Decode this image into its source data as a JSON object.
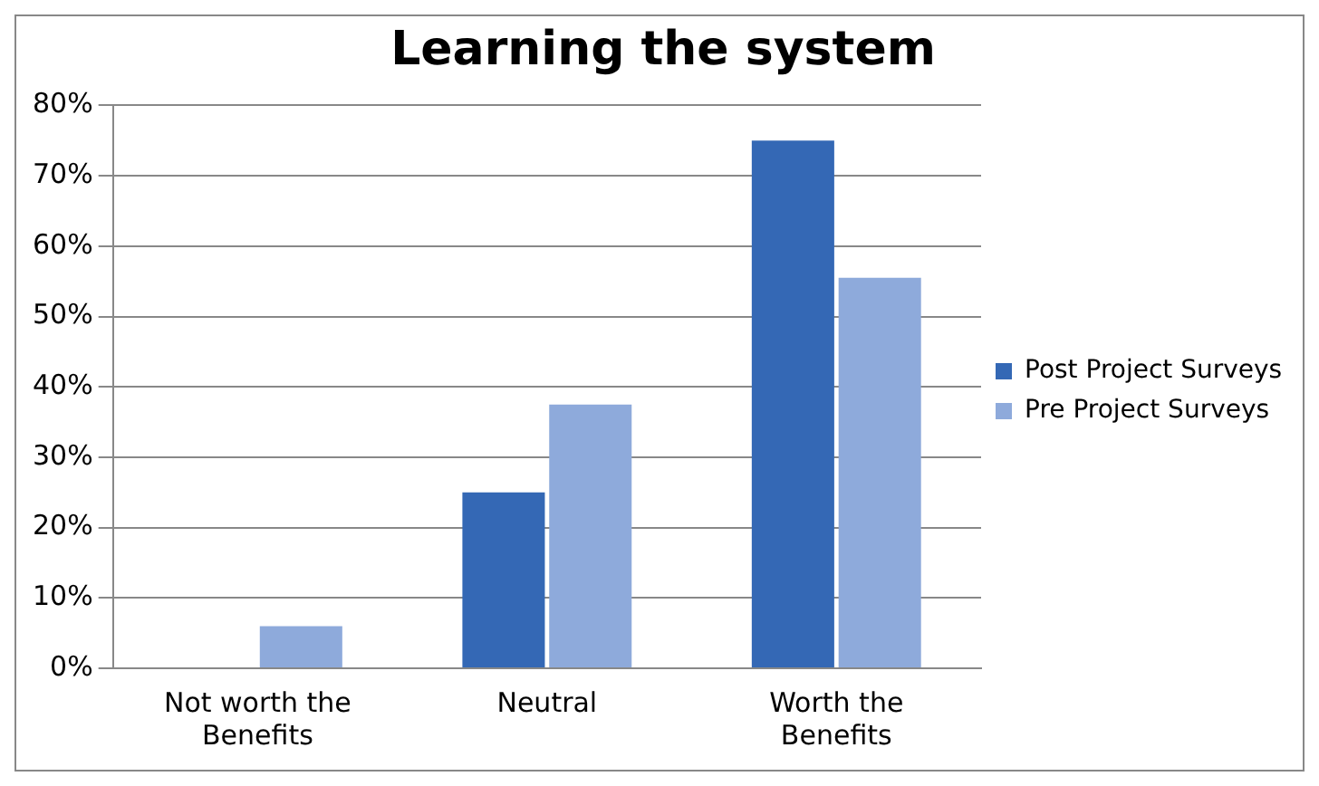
{
  "chart_data": {
    "type": "bar",
    "title": "Learning the system",
    "categories": [
      "Not worth the Benefits",
      "Neutral",
      "Worth the Benefits"
    ],
    "series": [
      {
        "name": "Post Project Surveys",
        "color": "#3468b5",
        "values": [
          0,
          25,
          75
        ]
      },
      {
        "name": "Pre Project Surveys",
        "color": "#8eaadb",
        "values": [
          6,
          37.5,
          55.5
        ]
      }
    ],
    "ylim": [
      0,
      80
    ],
    "yticks": [
      {
        "value": 0,
        "label": "0%"
      },
      {
        "value": 10,
        "label": "10%"
      },
      {
        "value": 20,
        "label": "20%"
      },
      {
        "value": 30,
        "label": "30%"
      },
      {
        "value": 40,
        "label": "40%"
      },
      {
        "value": 50,
        "label": "50%"
      },
      {
        "value": 60,
        "label": "60%"
      },
      {
        "value": 70,
        "label": "70%"
      },
      {
        "value": 80,
        "label": "80%"
      }
    ],
    "grid": "y",
    "legend": "right"
  }
}
